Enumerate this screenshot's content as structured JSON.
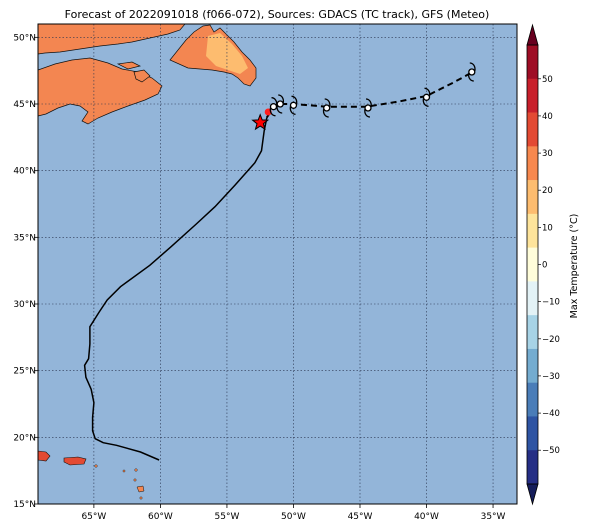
{
  "title": "Forecast of 2022091018 (f066-072), Sources: GDACS (TC track), GFS (Meteo)",
  "lon_ticks": [
    "65°W",
    "60°W",
    "55°W",
    "50°W",
    "45°W",
    "40°W",
    "35°W"
  ],
  "lat_ticks": [
    "50°N",
    "45°N",
    "40°N",
    "35°N",
    "30°N",
    "25°N",
    "20°N",
    "15°N"
  ],
  "map": {
    "lon_range": [
      -69.2,
      -33.2
    ],
    "lat_range": [
      15,
      51
    ],
    "ocean_color": "#93b5d9",
    "grid": true
  },
  "colorbar": {
    "label": "Max Temperature (°C)",
    "ticks": [
      "50",
      "40",
      "30",
      "20",
      "10",
      "0",
      "−10",
      "−20",
      "−30",
      "−40",
      "−50"
    ],
    "colors": [
      "#9e0d25",
      "#c8202b",
      "#e34a33",
      "#f7884e",
      "#fdbc6f",
      "#fee49b",
      "#fffdda",
      "#e3f2f6",
      "#a7d3e6",
      "#74acd0",
      "#4a7db8",
      "#2e54a3",
      "#252e85"
    ],
    "extend": "both"
  },
  "track": {
    "past": [
      [
        -60.1,
        18.3
      ],
      [
        -61.5,
        18.9
      ],
      [
        -63.3,
        19.4
      ],
      [
        -64.3,
        19.6
      ],
      [
        -64.9,
        19.9
      ],
      [
        -65.1,
        20.5
      ],
      [
        -65.1,
        21.5
      ],
      [
        -65.0,
        22.6
      ],
      [
        -65.2,
        23.6
      ],
      [
        -65.6,
        24.5
      ],
      [
        -65.7,
        25.4
      ],
      [
        -65.4,
        25.9
      ],
      [
        -65.3,
        27.0
      ],
      [
        -65.3,
        28.3
      ],
      [
        -64.6,
        29.4
      ],
      [
        -64.0,
        30.3
      ],
      [
        -63.0,
        31.3
      ],
      [
        -60.8,
        32.9
      ],
      [
        -59.2,
        34.3
      ],
      [
        -57.3,
        36.0
      ],
      [
        -55.9,
        37.3
      ],
      [
        -54.4,
        38.9
      ],
      [
        -52.9,
        40.6
      ],
      [
        -52.4,
        41.5
      ],
      [
        -52.2,
        43.0
      ],
      [
        -52.0,
        44.0
      ]
    ],
    "forecast": [
      [
        -52.0,
        44.0
      ],
      [
        -51.6,
        44.6
      ],
      [
        -51.0,
        45.0
      ],
      [
        -50.0,
        45.0
      ],
      [
        -47.5,
        44.8
      ],
      [
        -44.5,
        44.8
      ],
      [
        -42.0,
        45.2
      ],
      [
        -40.0,
        45.6
      ],
      [
        -38.0,
        46.6
      ],
      [
        -36.7,
        47.3
      ]
    ],
    "cyclone_symbols": [
      [
        -51.5,
        44.8
      ],
      [
        -51.0,
        45.0
      ],
      [
        -50.0,
        44.9
      ],
      [
        -47.5,
        44.7
      ],
      [
        -44.4,
        44.7
      ],
      [
        -40.0,
        45.5
      ],
      [
        -36.6,
        47.4
      ]
    ],
    "current_position": [
      -52.5,
      43.6
    ],
    "marker_color": "#ff0000"
  }
}
